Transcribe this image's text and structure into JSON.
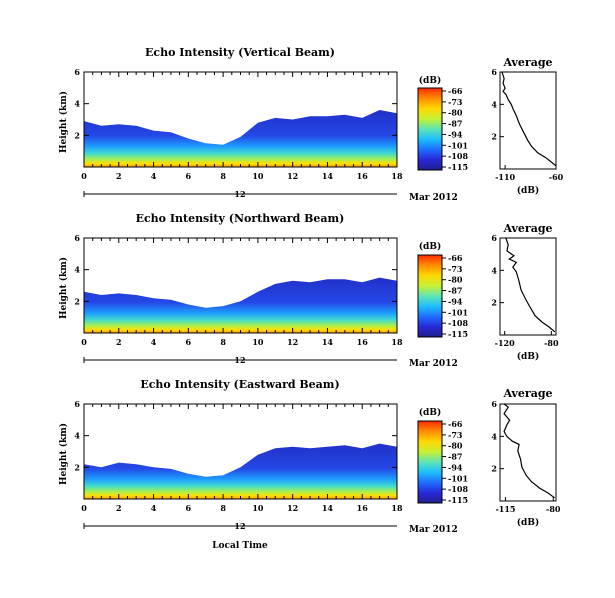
{
  "colorbar_unit": "(dB)",
  "colorbar_ticks": [
    "-66",
    "-73",
    "-80",
    "-87",
    "-94",
    "-101",
    "-108",
    "-115"
  ],
  "colorbar_colors": [
    "#ff2a00",
    "#ff8c00",
    "#ffd800",
    "#c8f032",
    "#5ee6b4",
    "#1ebeff",
    "#1e6eff",
    "#2828d8",
    "#20208c"
  ],
  "date_label": "Mar 2012",
  "day_label": "12",
  "footer_label": "Local Time",
  "chart_data": [
    {
      "type": "heatmap",
      "title": "Echo Intensity (Vertical Beam)",
      "ylabel": "Height (km)",
      "x_ticks": [
        "0",
        "2",
        "4",
        "6",
        "8",
        "10",
        "12",
        "14",
        "16",
        "18"
      ],
      "y_ticks": [
        "2",
        "4",
        "6"
      ],
      "xlim": [
        0,
        18
      ],
      "ylim": [
        0,
        6
      ],
      "colorbar": {
        "label": "(dB)",
        "range": [
          -115,
          -66
        ]
      },
      "top_profile": [
        [
          0,
          2.9
        ],
        [
          1,
          2.6
        ],
        [
          2,
          2.7
        ],
        [
          3,
          2.6
        ],
        [
          4,
          2.3
        ],
        [
          5,
          2.2
        ],
        [
          6,
          1.8
        ],
        [
          7,
          1.5
        ],
        [
          8,
          1.4
        ],
        [
          9,
          1.9
        ],
        [
          10,
          2.8
        ],
        [
          11,
          3.1
        ],
        [
          12,
          3.0
        ],
        [
          13,
          3.2
        ],
        [
          14,
          3.2
        ],
        [
          15,
          3.3
        ],
        [
          16,
          3.1
        ],
        [
          17,
          3.6
        ],
        [
          18,
          3.4
        ]
      ],
      "average": {
        "title": "Average",
        "xlabel": "(dB)",
        "x_ticks": [
          "-110",
          "-60"
        ],
        "xlim": [
          -115,
          -60
        ],
        "y_ticks": [
          "2",
          "4",
          "6"
        ],
        "profile": [
          [
            -60,
            0.2
          ],
          [
            -64,
            0.4
          ],
          [
            -70,
            0.7
          ],
          [
            -78,
            1.0
          ],
          [
            -84,
            1.4
          ],
          [
            -88,
            1.8
          ],
          [
            -92,
            2.3
          ],
          [
            -96,
            2.8
          ],
          [
            -99,
            3.3
          ],
          [
            -102,
            3.7
          ],
          [
            -104,
            4.0
          ],
          [
            -107,
            4.3
          ],
          [
            -109,
            4.6
          ],
          [
            -112,
            4.8
          ],
          [
            -110,
            5.0
          ],
          [
            -112,
            5.3
          ],
          [
            -111,
            5.6
          ],
          [
            -113,
            6.0
          ]
        ]
      }
    },
    {
      "type": "heatmap",
      "title": "Echo Intensity (Northward Beam)",
      "ylabel": "Height (km)",
      "x_ticks": [
        "0",
        "2",
        "4",
        "6",
        "8",
        "10",
        "12",
        "14",
        "16",
        "18"
      ],
      "y_ticks": [
        "2",
        "4",
        "6"
      ],
      "xlim": [
        0,
        18
      ],
      "ylim": [
        0,
        6
      ],
      "colorbar": {
        "label": "(dB)",
        "range": [
          -115,
          -66
        ]
      },
      "top_profile": [
        [
          0,
          2.6
        ],
        [
          1,
          2.4
        ],
        [
          2,
          2.5
        ],
        [
          3,
          2.4
        ],
        [
          4,
          2.2
        ],
        [
          5,
          2.1
        ],
        [
          6,
          1.8
        ],
        [
          7,
          1.6
        ],
        [
          8,
          1.7
        ],
        [
          9,
          2.0
        ],
        [
          10,
          2.6
        ],
        [
          11,
          3.1
        ],
        [
          12,
          3.3
        ],
        [
          13,
          3.2
        ],
        [
          14,
          3.4
        ],
        [
          15,
          3.4
        ],
        [
          16,
          3.2
        ],
        [
          17,
          3.5
        ],
        [
          18,
          3.3
        ]
      ],
      "average": {
        "title": "Average",
        "xlabel": "(dB)",
        "x_ticks": [
          "-120",
          "-80"
        ],
        "xlim": [
          -124,
          -76
        ],
        "y_ticks": [
          "2",
          "4",
          "6"
        ],
        "profile": [
          [
            -77,
            0.2
          ],
          [
            -82,
            0.5
          ],
          [
            -88,
            0.8
          ],
          [
            -94,
            1.2
          ],
          [
            -98,
            1.7
          ],
          [
            -102,
            2.2
          ],
          [
            -106,
            2.8
          ],
          [
            -108,
            3.4
          ],
          [
            -110,
            3.9
          ],
          [
            -113,
            4.2
          ],
          [
            -110,
            4.5
          ],
          [
            -116,
            4.7
          ],
          [
            -112,
            4.9
          ],
          [
            -118,
            5.2
          ],
          [
            -117,
            5.6
          ],
          [
            -119,
            6.0
          ]
        ]
      }
    },
    {
      "type": "heatmap",
      "title": "Echo Intensity (Eastward Beam)",
      "ylabel": "Height (km)",
      "x_ticks": [
        "0",
        "2",
        "4",
        "6",
        "8",
        "10",
        "12",
        "14",
        "16",
        "18"
      ],
      "y_ticks": [
        "2",
        "4",
        "6"
      ],
      "xlim": [
        0,
        18
      ],
      "ylim": [
        0,
        6
      ],
      "colorbar": {
        "label": "(dB)",
        "range": [
          -115,
          -66
        ]
      },
      "top_profile": [
        [
          0,
          2.2
        ],
        [
          1,
          2.0
        ],
        [
          2,
          2.3
        ],
        [
          3,
          2.2
        ],
        [
          4,
          2.0
        ],
        [
          5,
          1.9
        ],
        [
          6,
          1.6
        ],
        [
          7,
          1.4
        ],
        [
          8,
          1.5
        ],
        [
          9,
          2.0
        ],
        [
          10,
          2.8
        ],
        [
          11,
          3.2
        ],
        [
          12,
          3.3
        ],
        [
          13,
          3.2
        ],
        [
          14,
          3.3
        ],
        [
          15,
          3.4
        ],
        [
          16,
          3.2
        ],
        [
          17,
          3.5
        ],
        [
          18,
          3.3
        ]
      ],
      "average": {
        "title": "Average",
        "xlabel": "(dB)",
        "x_ticks": [
          "-115",
          "-80"
        ],
        "xlim": [
          -119,
          -78
        ],
        "y_ticks": [
          "2",
          "4",
          "6"
        ],
        "profile": [
          [
            -79,
            0.2
          ],
          [
            -84,
            0.5
          ],
          [
            -90,
            0.8
          ],
          [
            -96,
            1.2
          ],
          [
            -100,
            1.6
          ],
          [
            -103,
            2.1
          ],
          [
            -104,
            2.6
          ],
          [
            -106,
            3.1
          ],
          [
            -105,
            3.5
          ],
          [
            -110,
            3.7
          ],
          [
            -114,
            4.0
          ],
          [
            -116,
            4.3
          ],
          [
            -114,
            4.7
          ],
          [
            -112,
            5.0
          ],
          [
            -116,
            5.4
          ],
          [
            -113,
            5.8
          ],
          [
            -116,
            6.0
          ]
        ]
      }
    }
  ]
}
